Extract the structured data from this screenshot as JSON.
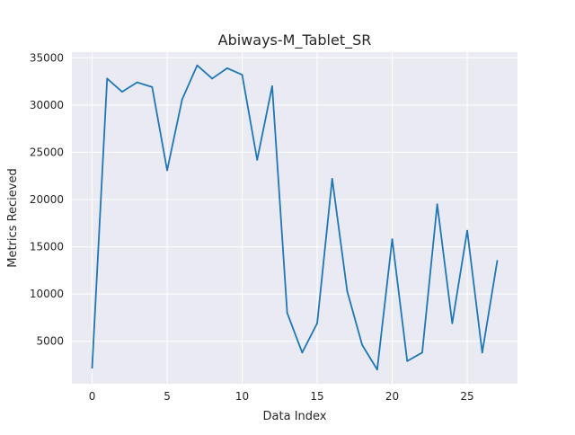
{
  "chart_data": {
    "type": "line",
    "title": "Abiways-M_Tablet_SR",
    "xlabel": "Data Index",
    "ylabel": "Metrics Recieved",
    "xlim": [
      -1.35,
      28.35
    ],
    "ylim": [
      500,
      35600
    ],
    "xticks": [
      0,
      5,
      10,
      15,
      20,
      25
    ],
    "yticks": [
      5000,
      10000,
      15000,
      20000,
      25000,
      30000,
      35000
    ],
    "grid": true,
    "style": "seaborn-darkgrid",
    "series": [
      {
        "color": "#1f77b4",
        "x": [
          0,
          1,
          2,
          3,
          4,
          5,
          6,
          7,
          8,
          9,
          10,
          11,
          12,
          13,
          14,
          15,
          16,
          17,
          18,
          19,
          20,
          21,
          22,
          23,
          24,
          25,
          26,
          27
        ],
        "values": [
          2200,
          32800,
          31400,
          32400,
          31900,
          23100,
          30600,
          34200,
          32800,
          33900,
          33200,
          24200,
          32000,
          8000,
          3800,
          6900,
          22200,
          10300,
          4600,
          2000,
          15800,
          2900,
          3800,
          19500,
          6900,
          16700,
          3800,
          13500
        ]
      }
    ]
  }
}
